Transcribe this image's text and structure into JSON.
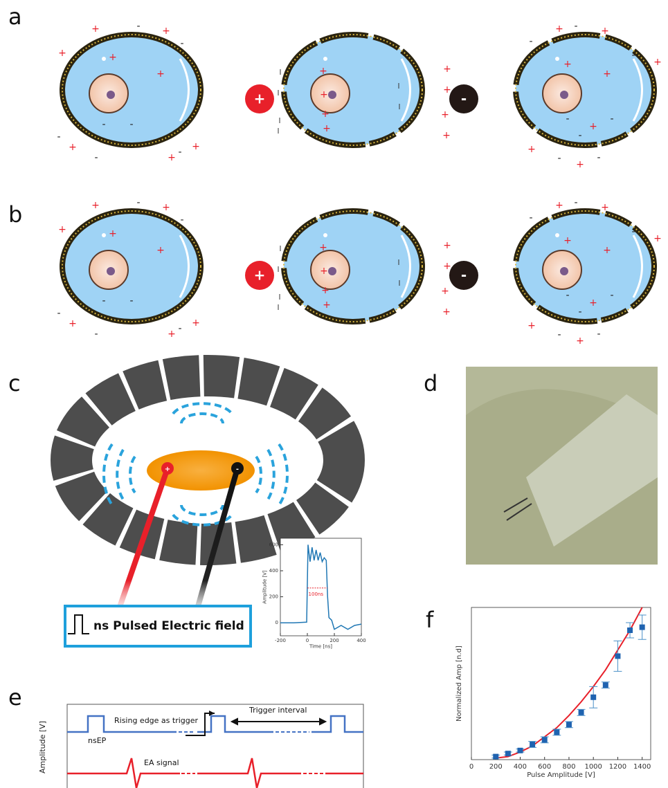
{
  "panel_labels": [
    "a",
    "b",
    "c",
    "d",
    "e",
    "f"
  ],
  "charges": {
    "plus": "+",
    "minus": "-"
  },
  "panel_c": {
    "box_label": "ns Pulsed Electric field"
  },
  "panel_e": {
    "y_label": "Amplitude [V]",
    "trigger_label": "Rising edge as trigger",
    "interval_label": "Trigger interval",
    "pulse_label": "nsEP",
    "signal_label": "EA signal"
  },
  "chart_data": [
    {
      "type": "line",
      "x_label": "Time [ns]",
      "y_label": "Amplitude [V]",
      "annotation": "100ns",
      "x": [
        -200,
        -100,
        -5,
        5,
        20,
        35,
        50,
        65,
        80,
        95,
        110,
        125,
        140,
        150,
        160,
        180,
        200,
        250,
        300,
        350,
        400
      ],
      "values": [
        0,
        0,
        5,
        600,
        470,
        580,
        480,
        560,
        480,
        540,
        470,
        500,
        480,
        200,
        40,
        20,
        -50,
        -20,
        -50,
        -20,
        -10
      ],
      "color": "#1f77b4",
      "xlim": [
        -200,
        400
      ],
      "ylim": [
        -100,
        650
      ],
      "xticks": [
        -200,
        0,
        200,
        400
      ],
      "yticks": [
        0,
        200,
        400,
        600
      ]
    },
    {
      "type": "scatter",
      "x_label": "Pulse Amplitude [V]",
      "y_label": "Normalized Amp [n.d]",
      "x": [
        200,
        300,
        400,
        500,
        600,
        700,
        800,
        900,
        1000,
        1100,
        1200,
        1300,
        1400
      ],
      "values": [
        0.02,
        0.04,
        0.06,
        0.1,
        0.13,
        0.18,
        0.23,
        0.31,
        0.41,
        0.49,
        0.68,
        0.85,
        0.87
      ],
      "errors": [
        0.01,
        0.01,
        0.01,
        0.02,
        0.02,
        0.02,
        0.02,
        0.02,
        0.07,
        0.02,
        0.1,
        0.05,
        0.08
      ],
      "color": "#1f63b0",
      "fit": {
        "values": [
          0.01,
          0.02,
          0.05,
          0.09,
          0.15,
          0.21,
          0.29,
          0.38,
          0.48,
          0.59,
          0.72,
          0.85,
          1.0
        ],
        "color": "#e8202a"
      },
      "xlim": [
        0,
        1470
      ],
      "ylim": [
        0,
        1
      ],
      "xticks": [
        0,
        200,
        400,
        600,
        800,
        1000,
        1200,
        1400
      ]
    }
  ]
}
